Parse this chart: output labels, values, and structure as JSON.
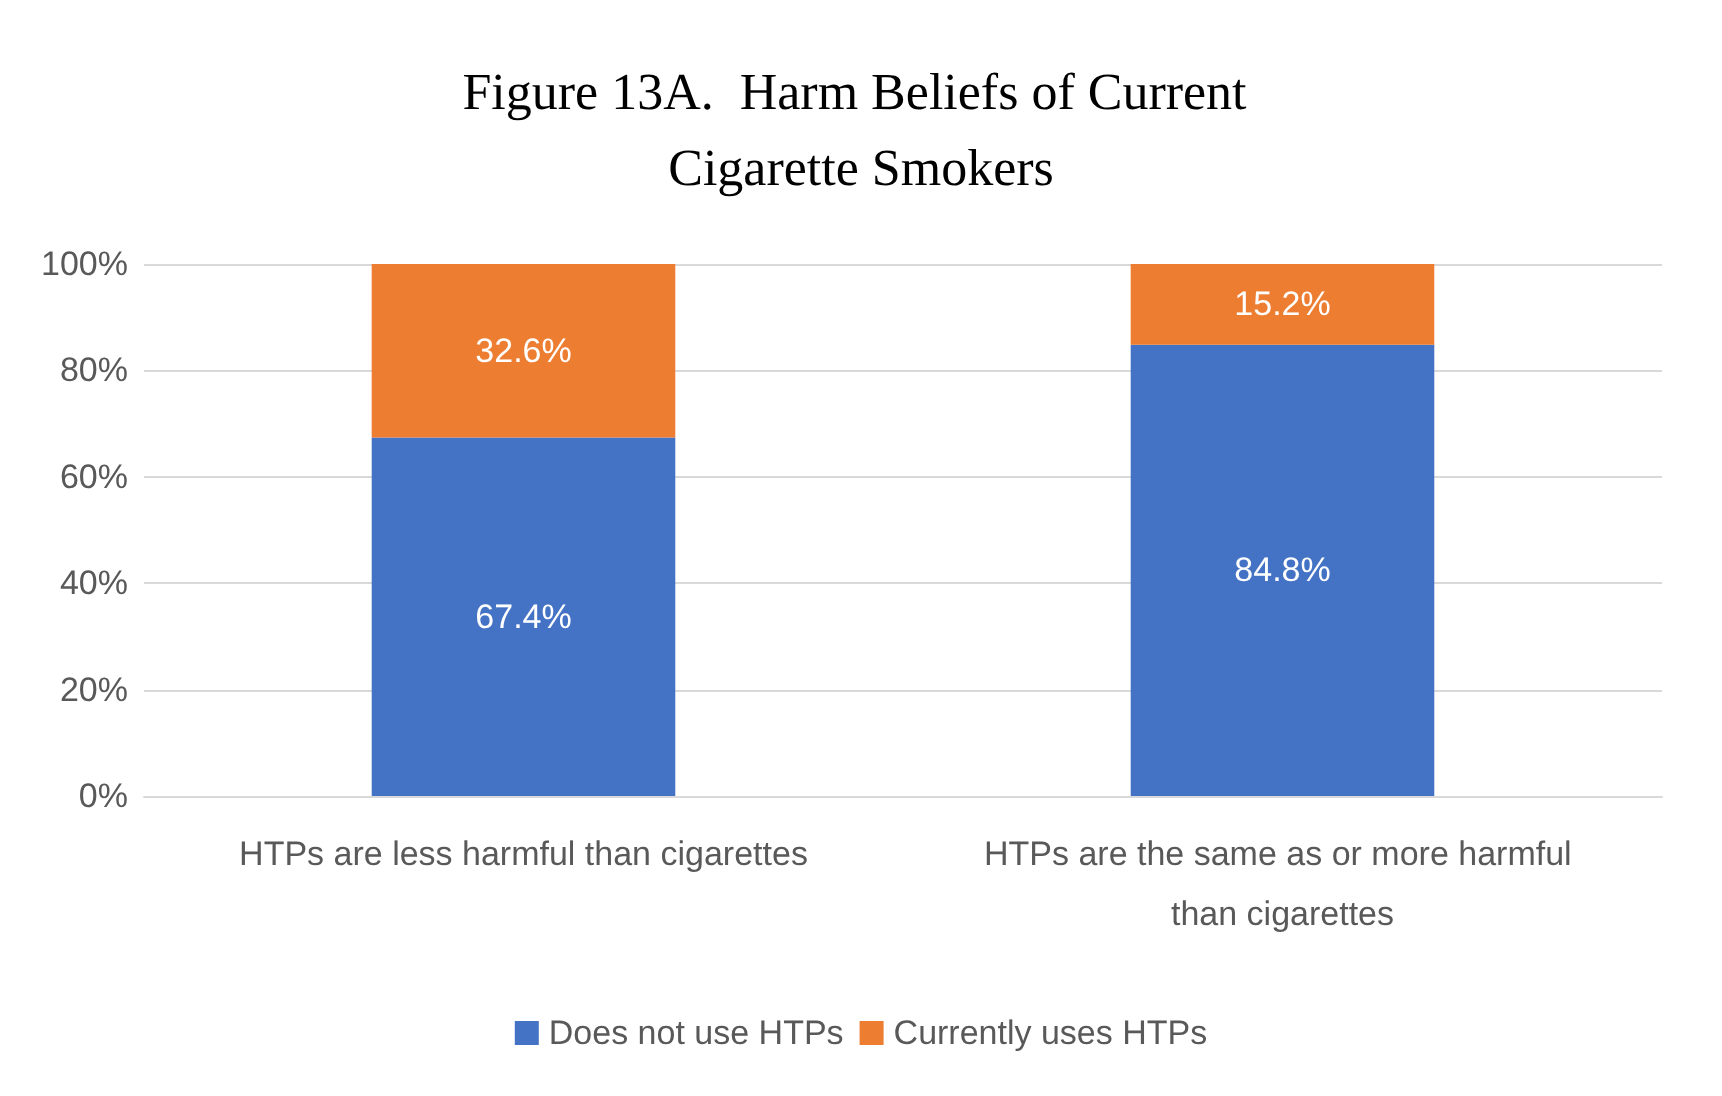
{
  "chart_data": {
    "type": "bar",
    "title": "Figure 13A.  Harm Beliefs of Current Cigarette Smokers",
    "categories": [
      "HTPs are less harmful than cigarettes",
      "HTPs are the same as or more harmful than cigarettes"
    ],
    "stacked": true,
    "series": [
      {
        "name": "Does not use HTPs",
        "color": "#4472c4",
        "values": [
          67.4,
          84.8
        ],
        "value_labels": [
          "67.4%",
          "84.8%"
        ]
      },
      {
        "name": "Currently uses HTPs",
        "color": "#ed7d31",
        "values": [
          32.6,
          15.2
        ],
        "value_labels": [
          "32.6%",
          "15.2%"
        ]
      }
    ],
    "ylim": [
      0,
      100
    ],
    "yticks": [
      {
        "value": 0,
        "label": "0%"
      },
      {
        "value": 20,
        "label": "20%"
      },
      {
        "value": 40,
        "label": "40%"
      },
      {
        "value": 60,
        "label": "60%"
      },
      {
        "value": 80,
        "label": "80%"
      },
      {
        "value": 100,
        "label": "100%"
      }
    ],
    "grid": "y",
    "legend": "bottom"
  }
}
